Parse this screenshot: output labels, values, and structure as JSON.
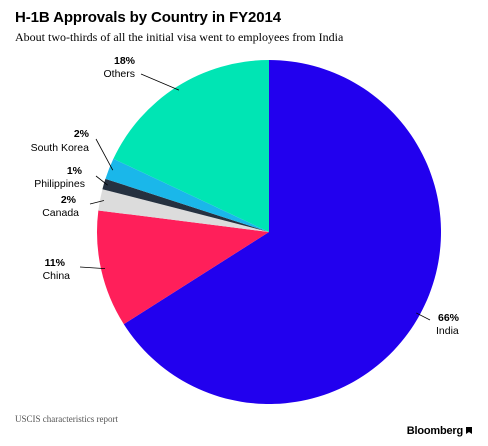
{
  "chart_data": {
    "type": "pie",
    "title": "H-1B Approvals by Country in FY2014",
    "subtitle": "About two-thirds of all the initial visa went to employees from India",
    "slices": [
      {
        "name": "India",
        "label": "66%",
        "value": 66,
        "color": "#2200ee"
      },
      {
        "name": "China",
        "label": "11%",
        "value": 11,
        "color": "#ff1f5a"
      },
      {
        "name": "Canada",
        "label": "2%",
        "value": 2,
        "color": "#dcdcdc"
      },
      {
        "name": "Philippines",
        "label": "1%",
        "value": 1,
        "color": "#263140"
      },
      {
        "name": "South Korea",
        "label": "2%",
        "value": 2,
        "color": "#1ab7ea"
      },
      {
        "name": "Others",
        "label": "18%",
        "value": 18,
        "color": "#00e5b4"
      }
    ],
    "start": "12 o'clock",
    "direction": "clockwise",
    "legend": "none",
    "labels": "outside with leader lines"
  },
  "footer": {
    "source": "USCIS characteristics report",
    "brand": "Bloomberg"
  }
}
